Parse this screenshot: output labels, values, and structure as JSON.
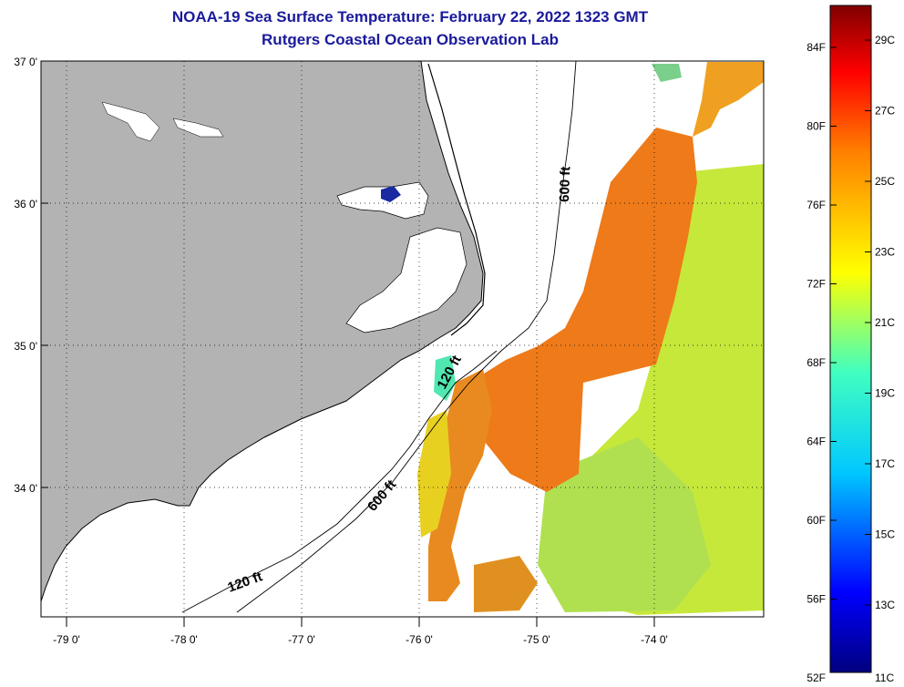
{
  "header": {
    "title": "NOAA-19 Sea Surface Temperature:  February 22, 2022 1323 GMT",
    "subtitle": "Rutgers Coastal Ocean Observation Lab"
  },
  "map": {
    "lat_labels": [
      {
        "value": 37,
        "label": "37 0'"
      },
      {
        "value": 36,
        "label": "36 0'"
      },
      {
        "value": 35,
        "label": "35 0'"
      },
      {
        "value": 34,
        "label": "34 0'"
      }
    ],
    "lon_labels": [
      {
        "value": -79,
        "label": "-79 0'"
      },
      {
        "value": -78,
        "label": "-78 0'"
      },
      {
        "value": -77,
        "label": "-77 0'"
      },
      {
        "value": -76,
        "label": "-76 0'"
      },
      {
        "value": -75,
        "label": "-75 0'"
      },
      {
        "value": -74,
        "label": "-74 0'"
      }
    ],
    "isobaths": [
      {
        "depth": "120 ft",
        "label": "120 ft"
      },
      {
        "depth": "120 ft",
        "label": "120 ft"
      },
      {
        "depth": "600 ft",
        "label": "600 ft"
      },
      {
        "depth": "600 ft",
        "label": "600 ft"
      }
    ],
    "land_color": "#b3b3b3",
    "water_color": "#ffffff"
  },
  "colorbar": {
    "fahrenheit_labels": [
      "84F",
      "80F",
      "76F",
      "72F",
      "68F",
      "64F",
      "60F",
      "56F",
      "52F"
    ],
    "celsius_labels": [
      "29C",
      "27C",
      "25C",
      "23C",
      "21C",
      "19C",
      "17C",
      "15C",
      "13C",
      "11C"
    ]
  }
}
